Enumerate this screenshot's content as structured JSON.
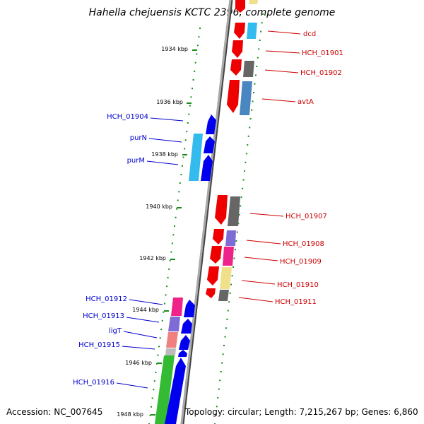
{
  "title": "Hahella chejuensis KCTC 2396, complete genome",
  "footer": {
    "accession": "Accession: NC_007645",
    "summary": "Topology: circular; Length: 7,215,267 bp; Genes: 6,860"
  },
  "ticks": [
    "1934 kbp",
    "1936 kbp",
    "1938 kbp",
    "1940 kbp",
    "1942 kbp",
    "1944 kbp",
    "1946 kbp",
    "1948 kbp"
  ],
  "left_labels": [
    "HCH_01904",
    "purN",
    "purM",
    "HCH_01912",
    "HCH_01913",
    "ligT",
    "HCH_01915",
    "HCH_01916"
  ],
  "right_labels": [
    "dcd",
    "HCH_01901",
    "HCH_01902",
    "avtA",
    "HCH_01907",
    "HCH_01908",
    "HCH_01909",
    "HCH_01910",
    "HCH_01911"
  ],
  "colors": {
    "forward_label": "#0000cc",
    "reverse_label": "#cc0000",
    "tick_dots": "#1a8a1a",
    "backbone": "#888888",
    "red": "#ee0000",
    "blue": "#0000ee",
    "cyan": "#33bbee",
    "gray": "#666666",
    "steelblue": "#4a86c0",
    "purple": "#7f6bd6",
    "pink": "#ee2288",
    "khaki": "#f0e08a",
    "salmon": "#f08080",
    "green": "#33bb33",
    "lightgray": "#bbbbbb"
  }
}
